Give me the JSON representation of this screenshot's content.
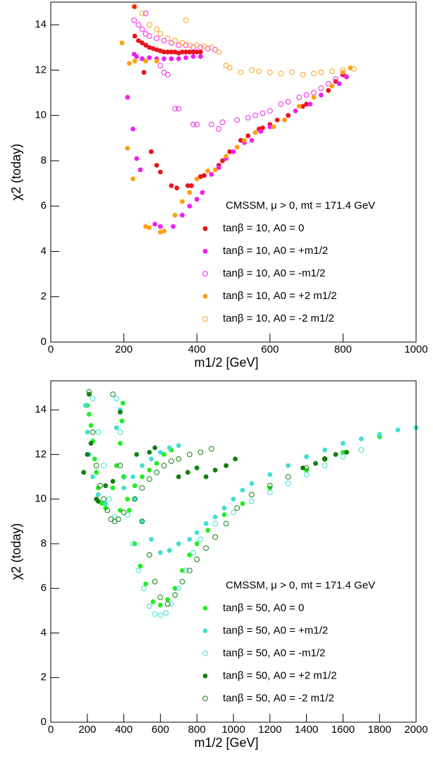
{
  "chart_data": [
    {
      "type": "scatter",
      "xlabel": "m1/2 [GeV]",
      "ylabel": "χ2 (today)",
      "annotation": "CMSSM, μ > 0, mt = 171.4 GeV",
      "xlim": [
        0,
        1000
      ],
      "ylim": [
        0,
        15
      ],
      "xticks": [
        0,
        200,
        400,
        600,
        800,
        1000
      ],
      "yticks": [
        0,
        2,
        4,
        6,
        8,
        10,
        12,
        14
      ],
      "series": [
        {
          "name": "tanβ = 10, A0 = 0",
          "color": "#e8141e",
          "marker": "filled",
          "x": [
            228,
            230,
            240,
            250,
            260,
            270,
            280,
            290,
            300,
            310,
            320,
            330,
            340,
            350,
            360,
            370,
            380,
            390,
            400,
            410,
            255,
            275,
            290,
            300,
            330,
            345,
            375,
            385,
            410,
            420,
            460,
            470,
            490,
            520,
            540,
            570,
            580,
            600,
            620,
            650,
            690,
            700,
            760,
            780,
            800
          ],
          "values": [
            14.8,
            13.5,
            13.3,
            13.2,
            13.1,
            13.0,
            12.95,
            12.9,
            12.85,
            12.8,
            12.8,
            12.8,
            12.8,
            12.75,
            12.8,
            12.8,
            12.8,
            12.8,
            12.8,
            12.8,
            11.9,
            8.4,
            7.8,
            7.5,
            6.9,
            6.8,
            6.9,
            6.9,
            7.3,
            7.35,
            7.8,
            8.0,
            8.4,
            8.9,
            9.1,
            9.4,
            9.45,
            9.6,
            9.8,
            10.0,
            10.4,
            10.5,
            11.1,
            11.5,
            11.8
          ]
        },
        {
          "name": "tanβ = 10, A0 = +m1/2",
          "color": "#f020f0",
          "marker": "filled",
          "x": [
            228,
            235,
            250,
            270,
            290,
            310,
            330,
            350,
            370,
            390,
            410,
            210,
            225,
            235,
            245,
            285,
            300,
            335,
            360,
            380,
            400,
            415,
            440,
            460,
            480,
            500,
            530,
            550,
            575,
            600,
            640,
            670,
            710,
            740,
            790,
            810
          ],
          "values": [
            12.7,
            12.6,
            12.5,
            12.55,
            12.5,
            12.5,
            12.5,
            12.5,
            12.55,
            12.6,
            12.6,
            10.8,
            9.4,
            8.1,
            7.6,
            5.2,
            5.1,
            5.1,
            5.6,
            6.0,
            6.3,
            6.6,
            7.4,
            7.7,
            8.1,
            8.4,
            8.8,
            8.9,
            9.3,
            9.5,
            9.8,
            10.2,
            10.5,
            10.9,
            11.4,
            11.7
          ]
        },
        {
          "name": "tanβ = 10, A0 = -m1/2",
          "color": "#f020f0",
          "marker": "open",
          "x": [
            228,
            240,
            250,
            260,
            270,
            290,
            310,
            330,
            350,
            370,
            390,
            410,
            430,
            450,
            260,
            300,
            310,
            320,
            340,
            350,
            390,
            400,
            440,
            460,
            470,
            510,
            540,
            560,
            580,
            600,
            630,
            650,
            680,
            700,
            720,
            740,
            760,
            780,
            800
          ],
          "values": [
            14.2,
            14.0,
            13.8,
            13.6,
            13.5,
            13.4,
            13.3,
            13.2,
            13.1,
            13.1,
            13.0,
            13.0,
            12.95,
            12.9,
            14.5,
            12.2,
            11.9,
            11.8,
            10.3,
            10.3,
            9.6,
            9.6,
            9.6,
            9.4,
            9.7,
            9.8,
            9.9,
            10.0,
            10.1,
            10.2,
            10.5,
            10.6,
            10.8,
            10.9,
            11.0,
            11.2,
            11.4,
            11.6,
            11.8
          ]
        },
        {
          "name": "tanβ = 10, A0 = +2 m1/2",
          "color": "#ffa010",
          "marker": "filled",
          "x": [
            195,
            215,
            230,
            260,
            290,
            210,
            225,
            260,
            270,
            300,
            310,
            340,
            360,
            380,
            400,
            430,
            450,
            480,
            510,
            530,
            560,
            610,
            640,
            680,
            720,
            770,
            800,
            820
          ],
          "values": [
            13.2,
            12.3,
            12.4,
            12.4,
            12.4,
            8.55,
            7.2,
            5.1,
            5.05,
            4.85,
            4.9,
            5.6,
            6.2,
            6.6,
            7.2,
            7.55,
            7.6,
            8.2,
            8.6,
            8.9,
            9.25,
            9.5,
            9.8,
            10.4,
            10.8,
            11.3,
            11.9,
            12.1
          ]
        },
        {
          "name": "tanβ = 10, A0 = -2 m1/2",
          "color": "#ffa010",
          "marker": "open",
          "x": [
            230,
            250,
            270,
            290,
            300,
            320,
            340,
            360,
            380,
            400,
            420,
            440,
            370,
            460,
            480,
            490,
            520,
            550,
            570,
            600,
            630,
            660,
            690,
            720,
            740,
            770,
            800,
            830
          ],
          "values": [
            14.8,
            14.5,
            14.0,
            13.8,
            13.6,
            13.4,
            13.3,
            13.2,
            13.1,
            13.1,
            13.05,
            13.0,
            14.2,
            12.8,
            12.2,
            12.1,
            11.9,
            12.0,
            11.95,
            11.9,
            11.85,
            11.9,
            11.8,
            11.85,
            11.9,
            11.95,
            12.0,
            12.05
          ]
        }
      ]
    },
    {
      "type": "scatter",
      "xlabel": "m1/2 [GeV]",
      "ylabel": "χ2 (today)",
      "annotation": "CMSSM, μ > 0, mt = 171.4 GeV",
      "xlim": [
        0,
        2000
      ],
      "ylim": [
        0,
        15.3
      ],
      "xticks": [
        0,
        200,
        400,
        600,
        800,
        1000,
        1200,
        1400,
        1600,
        1800,
        2000
      ],
      "yticks": [
        0,
        2,
        4,
        6,
        8,
        10,
        12,
        14
      ],
      "series": [
        {
          "name": "tanβ = 50, A0 = 0",
          "color": "#20f020",
          "marker": "filled",
          "x": [
            200,
            210,
            220,
            230,
            240,
            250,
            260,
            280,
            300,
            340,
            360,
            380,
            390,
            395,
            380,
            420,
            460,
            500,
            540,
            580,
            620,
            660,
            400,
            430,
            460,
            490,
            520,
            560,
            600,
            640,
            680,
            720,
            760,
            800,
            860,
            950,
            1050,
            1200,
            1400,
            1600,
            1800
          ],
          "values": [
            14.2,
            13.8,
            13.3,
            12.6,
            11.8,
            11.2,
            10.5,
            9.8,
            9.6,
            10.5,
            11.5,
            12.5,
            13.5,
            14.3,
            9.5,
            10.0,
            10.6,
            11.0,
            11.3,
            11.6,
            12.0,
            12.2,
            11.0,
            9.5,
            8.0,
            7.0,
            6.2,
            5.4,
            5.25,
            5.5,
            6.0,
            6.8,
            7.5,
            8.0,
            8.6,
            9.3,
            9.8,
            10.5,
            11.3,
            12.1,
            12.8
          ]
        },
        {
          "name": "tanβ = 50, A0 = +m1/2",
          "color": "#40e0d0",
          "marker": "filled",
          "x": [
            190,
            200,
            210,
            230,
            260,
            300,
            360,
            380,
            400,
            450,
            500,
            550,
            600,
            650,
            700,
            460,
            500,
            550,
            600,
            650,
            700,
            760,
            800,
            850,
            900,
            950,
            1000,
            1050,
            1100,
            1200,
            1300,
            1400,
            1500,
            1600,
            1700,
            1800,
            1900,
            2000
          ],
          "values": [
            14.2,
            13.0,
            12.0,
            11.0,
            10.2,
            9.8,
            13.2,
            14.0,
            10.5,
            11.0,
            11.5,
            11.8,
            12.1,
            12.3,
            12.4,
            10.0,
            9.0,
            8.2,
            7.6,
            7.7,
            8.0,
            8.2,
            8.5,
            8.9,
            9.2,
            9.6,
            10.0,
            10.4,
            10.7,
            11.1,
            11.5,
            11.9,
            12.2,
            12.5,
            12.7,
            12.9,
            13.1,
            13.2
          ]
        },
        {
          "name": "tanβ = 50, A0 = -m1/2",
          "color": "#40e0d0",
          "marker": "open",
          "x": [
            230,
            260,
            290,
            320,
            350,
            360,
            380,
            400,
            420,
            450,
            480,
            510,
            540,
            570,
            600,
            630,
            660,
            700,
            740,
            780,
            820,
            900,
            1000,
            1100,
            1200,
            1300,
            1400,
            1500,
            1600,
            1700
          ],
          "values": [
            14.5,
            13.0,
            11.5,
            10.0,
            9.2,
            14.5,
            13.0,
            11.0,
            9.3,
            8.0,
            6.8,
            6.0,
            5.2,
            4.85,
            4.8,
            4.9,
            5.3,
            6.0,
            6.8,
            7.6,
            8.2,
            8.9,
            9.4,
            9.9,
            10.3,
            10.7,
            11.1,
            11.5,
            11.9,
            12.2
          ]
        },
        {
          "name": "tanβ = 50, A0 = +2 m1/2",
          "color": "#108010",
          "marker": "filled",
          "x": [
            180,
            200,
            210,
            220,
            250,
            260,
            300,
            340,
            380,
            470,
            540,
            570,
            700,
            750,
            800,
            850,
            900,
            960,
            1010,
            1380,
            1450,
            1500,
            1560,
            1620
          ],
          "values": [
            11.2,
            12.0,
            14.7,
            12.5,
            10.0,
            9.9,
            10.6,
            10.8,
            13.9,
            12.0,
            12.1,
            12.3,
            11.0,
            11.2,
            11.4,
            11.0,
            11.3,
            11.5,
            11.8,
            11.4,
            11.6,
            11.8,
            12.0,
            12.1
          ]
        },
        {
          "name": "tanβ = 50, A0 = -2 m1/2",
          "color": "#108010",
          "marker": "open",
          "x": [
            210,
            230,
            250,
            270,
            290,
            310,
            330,
            350,
            370,
            400,
            340,
            380,
            460,
            500,
            540,
            580,
            620,
            660,
            700,
            760,
            820,
            880,
            500,
            540,
            570,
            600,
            640,
            680,
            720,
            760,
            800,
            850,
            900,
            960,
            1020,
            1100,
            1200,
            1300,
            1400,
            1500
          ],
          "values": [
            14.8,
            13.0,
            11.5,
            10.6,
            10.0,
            9.5,
            9.1,
            9.0,
            9.1,
            9.4,
            14.7,
            11.5,
            10.0,
            10.5,
            10.9,
            11.2,
            11.5,
            11.7,
            11.8,
            12.0,
            12.1,
            12.25,
            9.0,
            7.5,
            6.3,
            5.6,
            5.3,
            5.7,
            6.3,
            6.8,
            7.3,
            7.8,
            8.3,
            8.9,
            9.6,
            10.2,
            10.6,
            11.0,
            11.4,
            11.8
          ]
        }
      ]
    }
  ]
}
